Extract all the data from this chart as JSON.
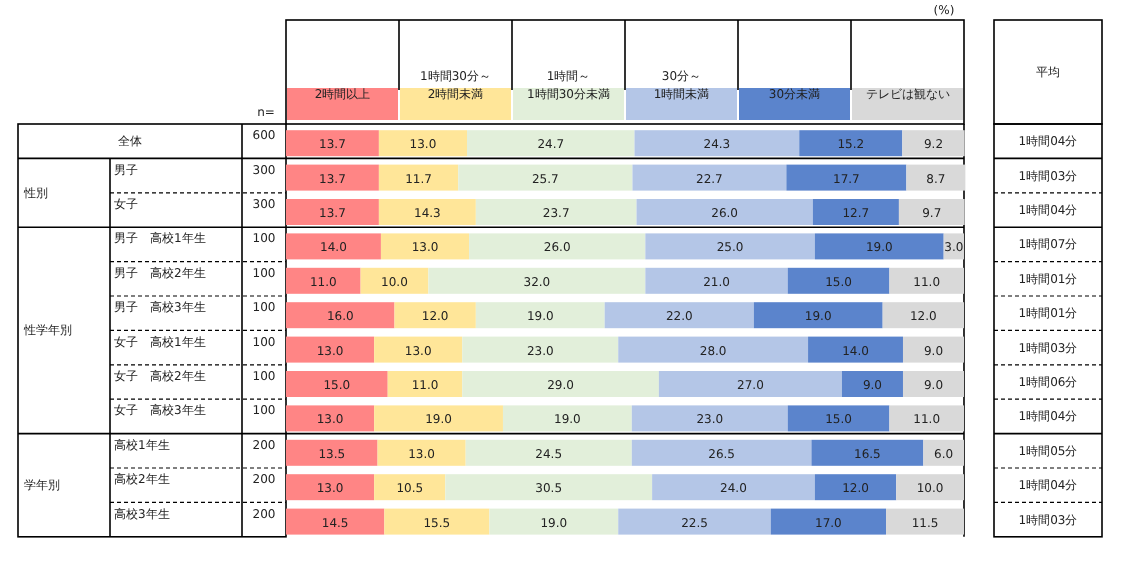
{
  "chart_data": {
    "type": "bar",
    "orientation": "horizontal",
    "stacked": true,
    "legend": "top",
    "xlim": [
      0,
      100
    ],
    "categories": [
      "全体",
      "男子",
      "女子",
      "男子　高校1年生",
      "男子　高校2年生",
      "男子　高校3年生",
      "女子　高校1年生",
      "女子　高校2年生",
      "女子　高校3年生",
      "高校1年生",
      "高校2年生",
      "高校3年生"
    ],
    "series": [
      {
        "name": "2時間以上",
        "color": "#ff8585",
        "values": [
          13.7,
          13.7,
          13.7,
          14,
          11,
          16,
          13,
          15,
          13,
          13.5,
          13,
          14.5
        ],
        "value_labels": [
          "13.7",
          "13.7",
          "13.7",
          "14.0",
          "11.0",
          "16.0",
          "13.0",
          "15.0",
          "13.0",
          "13.5",
          "13.0",
          "14.5"
        ]
      },
      {
        "name": "1時間30分～\n2時間未満",
        "color": "#ffe699",
        "values": [
          13,
          11.7,
          14.3,
          13,
          10,
          12,
          13,
          11,
          19,
          13,
          10.5,
          15.5
        ],
        "value_labels": [
          "13.0",
          "11.7",
          "14.3",
          "13.0",
          "10.0",
          "12.0",
          "13.0",
          "11.0",
          "19.0",
          "13.0",
          "10.5",
          "15.5"
        ]
      },
      {
        "name": "1時間～\n1時間30分未満",
        "color": "#e2efda",
        "values": [
          24.7,
          25.7,
          23.7,
          26,
          32,
          19,
          23,
          29,
          19,
          24.5,
          30.5,
          19
        ],
        "value_labels": [
          "24.7",
          "25.7",
          "23.7",
          "26.0",
          "32.0",
          "19.0",
          "23.0",
          "29.0",
          "19.0",
          "24.5",
          "30.5",
          "19.0"
        ]
      },
      {
        "name": "30分～\n1時間未満",
        "color": "#b4c6e7",
        "values": [
          24.3,
          22.7,
          26,
          25,
          21,
          22,
          28,
          27,
          23,
          26.5,
          24,
          22.5
        ],
        "value_labels": [
          "24.3",
          "22.7",
          "26.0",
          "25.0",
          "21.0",
          "22.0",
          "28.0",
          "27.0",
          "23.0",
          "26.5",
          "24.0",
          "22.5"
        ]
      },
      {
        "name": "30分未満",
        "color": "#5b84cc",
        "values": [
          15.2,
          17.7,
          12.7,
          19,
          15,
          19,
          14,
          9,
          15,
          16.5,
          12,
          17
        ],
        "value_labels": [
          "15.2",
          "17.7",
          "12.7",
          "19.0",
          "15.0",
          "19.0",
          "14.0",
          "9.0",
          "15.0",
          "16.5",
          "12.0",
          "17.0"
        ]
      },
      {
        "name": "テレビは観ない",
        "color": "#d9d9d9",
        "values": [
          9.2,
          8.7,
          9.7,
          3,
          11,
          12,
          9,
          9,
          11,
          6,
          10,
          11.5
        ],
        "value_labels": [
          "9.2",
          "8.7",
          "9.7",
          "3.0",
          "11.0",
          "12.0",
          "9.0",
          "9.0",
          "11.0",
          "6.0",
          "10.0",
          "11.5"
        ]
      }
    ],
    "annotations": [
      "(%)",
      "n=",
      "平均",
      "性別",
      "性学年別",
      "学年別",
      "600",
      "300",
      "300",
      "100",
      "100",
      "100",
      "100",
      "100",
      "100",
      "200",
      "200",
      "200",
      "1時間04分",
      "1時間03分",
      "1時間04分",
      "1時間07分",
      "1時間01分",
      "1時間01分",
      "1時間03分",
      "1時間06分",
      "1時間04分",
      "1時間05分",
      "1時間04分",
      "1時間03分"
    ]
  }
}
